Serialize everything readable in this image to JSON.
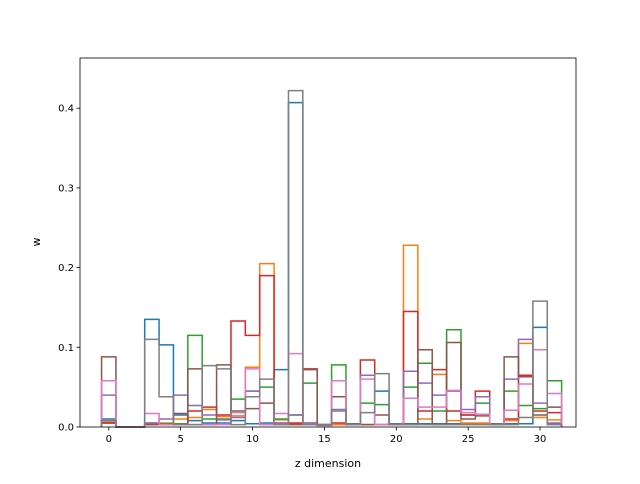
{
  "chart_data": {
    "type": "step",
    "xlabel": "z dimension",
    "ylabel": "w",
    "xlim": [
      -2,
      32.5
    ],
    "ylim": [
      0,
      0.463
    ],
    "x_ticks": [
      0,
      5,
      10,
      15,
      20,
      25,
      30
    ],
    "y_ticks": [
      0.0,
      0.1,
      0.2,
      0.3,
      0.4
    ],
    "y_tick_labels": [
      "0.0",
      "0.1",
      "0.2",
      "0.3",
      "0.4"
    ],
    "dims": [
      0,
      1,
      2,
      3,
      4,
      5,
      6,
      7,
      8,
      9,
      10,
      11,
      12,
      13,
      14,
      15,
      16,
      17,
      18,
      19,
      20,
      21,
      22,
      23,
      24,
      25,
      26,
      27,
      28,
      29,
      30,
      31
    ],
    "series": [
      {
        "color": "#1f77b4",
        "values": [
          0.01,
          0,
          0,
          0.135,
          0.103,
          0.015,
          0.008,
          0.005,
          0.005,
          0.008,
          0.004,
          0.005,
          0.072,
          0.407,
          0.005,
          0.003,
          0.003,
          0.004,
          0.003,
          0.045,
          0.004,
          0.004,
          0.004,
          0.004,
          0.004,
          0.004,
          0.004,
          0.004,
          0.004,
          0.004,
          0.125,
          0.004
        ]
      },
      {
        "color": "#ff7f0e",
        "values": [
          0.006,
          0,
          0,
          0.005,
          0.005,
          0.01,
          0.012,
          0.022,
          0.013,
          0.014,
          0.075,
          0.205,
          0.009,
          0.004,
          0.004,
          0.002,
          0.003,
          0.003,
          0.003,
          0.003,
          0.003,
          0.228,
          0.01,
          0.066,
          0.008,
          0.005,
          0.005,
          0.003,
          0.008,
          0.105,
          0.012,
          0.009
        ]
      },
      {
        "color": "#2ca02c",
        "values": [
          0.005,
          0,
          0,
          0.004,
          0.004,
          0.004,
          0.115,
          0.01,
          0.01,
          0.035,
          0.045,
          0.05,
          0.01,
          0.015,
          0.055,
          0.003,
          0.078,
          0.003,
          0.03,
          0.028,
          0.003,
          0.05,
          0.08,
          0.02,
          0.122,
          0.015,
          0.03,
          0.003,
          0.045,
          0.027,
          0.023,
          0.058
        ]
      },
      {
        "color": "#d62728",
        "values": [
          0.005,
          0,
          0,
          0.003,
          0.003,
          0.003,
          0.02,
          0.025,
          0.015,
          0.133,
          0.115,
          0.19,
          0.005,
          0.005,
          0.073,
          0.003,
          0.005,
          0.003,
          0.084,
          0.003,
          0.003,
          0.145,
          0.02,
          0.072,
          0.02,
          0.015,
          0.045,
          0.003,
          0.01,
          0.065,
          0.02,
          0.018
        ]
      },
      {
        "color": "#9467bd",
        "values": [
          0.04,
          0,
          0,
          0.005,
          0.01,
          0.04,
          0.027,
          0.015,
          0.009,
          0.012,
          0.045,
          0.003,
          0.005,
          0.015,
          0.005,
          0.002,
          0.02,
          0.003,
          0.065,
          0.003,
          0.003,
          0.07,
          0.055,
          0.04,
          0.045,
          0.022,
          0.038,
          0.003,
          0.06,
          0.11,
          0.03,
          0.005
        ]
      },
      {
        "color": "#8c564b",
        "values": [
          0.088,
          0,
          0,
          0.003,
          0.003,
          0.017,
          0.073,
          0.003,
          0.078,
          0.02,
          0.023,
          0.03,
          0.003,
          0.003,
          0.072,
          0.003,
          0.038,
          0.003,
          0.003,
          0.015,
          0.003,
          0.003,
          0.097,
          0.003,
          0.106,
          0.01,
          0.014,
          0.003,
          0.088,
          0.063,
          0.015,
          0.025
        ]
      },
      {
        "color": "#e377c2",
        "values": [
          0.058,
          0,
          0,
          0.017,
          0.003,
          0.003,
          0.003,
          0.003,
          0.003,
          0.018,
          0.073,
          0.003,
          0.017,
          0.092,
          0.003,
          0.003,
          0.058,
          0.003,
          0.06,
          0.003,
          0.003,
          0.036,
          0.025,
          0.025,
          0.046,
          0.018,
          0.016,
          0.003,
          0.021,
          0.054,
          0.097,
          0.042
        ]
      },
      {
        "color": "#7f7f7f",
        "values": [
          0.008,
          0,
          0,
          0.11,
          0.038,
          0.003,
          0.003,
          0.077,
          0.073,
          0.003,
          0.038,
          0.06,
          0.003,
          0.422,
          0.003,
          0.003,
          0.022,
          0.003,
          0.018,
          0.067,
          0.003,
          0.003,
          0.003,
          0.003,
          0.003,
          0.003,
          0.003,
          0.003,
          0.003,
          0.012,
          0.158,
          0.003
        ]
      }
    ]
  }
}
